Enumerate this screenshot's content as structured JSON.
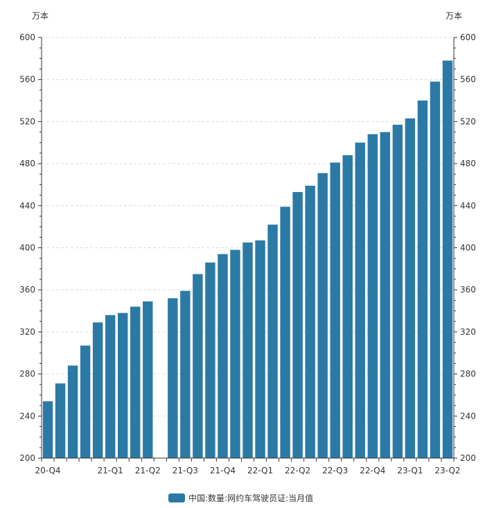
{
  "chart_data": {
    "type": "bar",
    "y_unit_left": "万本",
    "y_unit_right": "万本",
    "ylim": [
      200,
      600
    ],
    "yticks": [
      200,
      240,
      280,
      320,
      360,
      400,
      440,
      480,
      520,
      560,
      600
    ],
    "grid": true,
    "legend_position": "bottom-center",
    "series": [
      {
        "name": "中国:数量:网约车驾驶员证:当月值",
        "color": "#2b7aa6",
        "values": [
          254,
          271,
          288,
          307,
          329,
          336,
          338,
          344,
          349,
          null,
          352,
          359,
          375,
          386,
          394,
          398,
          405,
          407,
          422,
          439,
          453,
          459,
          471,
          481,
          488,
          500,
          508,
          510,
          517,
          523,
          540,
          558,
          578
        ]
      }
    ],
    "x_tick_labels": [
      {
        "index": 0,
        "label": "20-Q4"
      },
      {
        "index": 5,
        "label": "21-Q1"
      },
      {
        "index": 8,
        "label": "21-Q2"
      },
      {
        "index": 11,
        "label": "21-Q3"
      },
      {
        "index": 14,
        "label": "21-Q4"
      },
      {
        "index": 17,
        "label": "22-Q1"
      },
      {
        "index": 20,
        "label": "22-Q2"
      },
      {
        "index": 23,
        "label": "22-Q3"
      },
      {
        "index": 26,
        "label": "22-Q4"
      },
      {
        "index": 29,
        "label": "23-Q1"
      },
      {
        "index": 32,
        "label": "23-Q2"
      }
    ]
  }
}
